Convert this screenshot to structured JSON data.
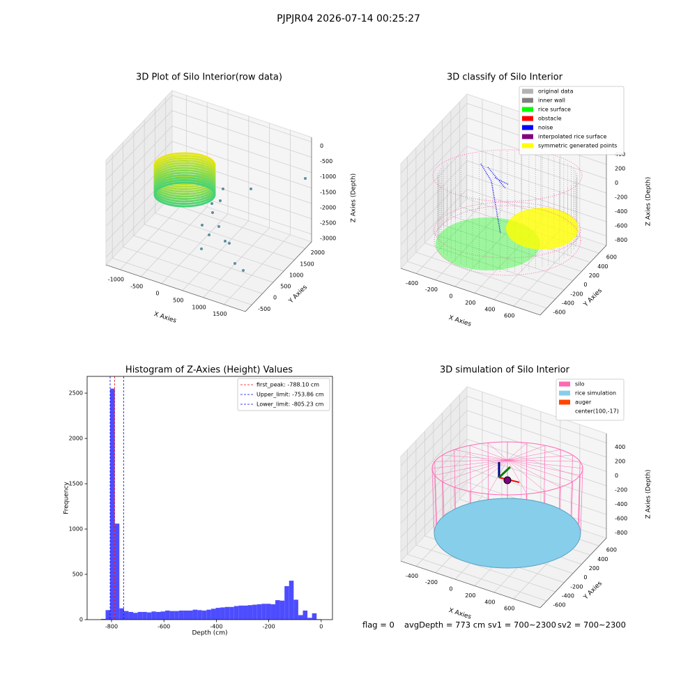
{
  "title": "PJPJR04 2026-07-14 00:25:27",
  "footer": {
    "flag": "flag = 0",
    "avg_depth": "avgDepth = 773 cm",
    "sv1": "sv1 = 700~2300",
    "sv2": "sv2 = 700~2300"
  },
  "chart_data": [
    {
      "type": "scatter3d",
      "title": "3D Plot of Silo Interior(row data)",
      "xlabel": "X Axies",
      "ylabel": "Y Axies",
      "zlabel": "Z Axies (Depth)",
      "xlim": [
        -1342,
        2014
      ],
      "ylim": [
        -800,
        2300
      ],
      "zlim": [
        -3250,
        150
      ],
      "xticks": [
        -1000,
        -500,
        0,
        500,
        1000,
        1500
      ],
      "yticks": [
        -500,
        0,
        500,
        1000,
        1500,
        2000
      ],
      "zticks": [
        0,
        -500,
        -1000,
        -1500,
        -2000,
        -2500,
        -3000
      ]
    },
    {
      "type": "scatter3d",
      "title": "3D classify of Silo Interior",
      "xlabel": "X Axies",
      "ylabel": "Y Axies",
      "zlabel": "Z Axies (Depth)",
      "xlim": [
        -557,
        873
      ],
      "ylim": [
        -750,
        770
      ],
      "zlim": [
        -930,
        530
      ],
      "xticks": [
        -400,
        -200,
        0,
        200,
        400,
        600
      ],
      "yticks": [
        -600,
        -400,
        -200,
        0,
        200,
        400,
        600
      ],
      "zticks": [
        400,
        200,
        0,
        -200,
        -400,
        -600,
        -800
      ],
      "legend": [
        {
          "name": "original data",
          "color": "#b3b3b3"
        },
        {
          "name": "inner wall",
          "color": "#808080"
        },
        {
          "name": "rice surface",
          "color": "#00ff00"
        },
        {
          "name": "obstacle",
          "color": "#ff0000"
        },
        {
          "name": "noise",
          "color": "#0000ff"
        },
        {
          "name": "interpolated rice surface",
          "color": "#800080"
        },
        {
          "name": "symmetric generated points",
          "color": "#ffff00"
        }
      ]
    },
    {
      "type": "histogram",
      "title": "Histogram of Z-Axies (Height) Values",
      "xlabel": "Depth (cm)",
      "ylabel": "Frequency",
      "color": "#4d4dff",
      "xlim": [
        -893,
        43
      ],
      "ylim": [
        0,
        2685
      ],
      "xticks": [
        -800,
        -600,
        -400,
        -200,
        0
      ],
      "yticks": [
        0,
        500,
        1000,
        1500,
        2000,
        2500
      ],
      "bins": [
        -840,
        -822.5,
        -805,
        -787.5,
        -770,
        -752.5,
        -735,
        -717.5,
        -700,
        -682.5,
        -665,
        -647.5,
        -630,
        -612.5,
        -595,
        -577.5,
        -560,
        -542.5,
        -525,
        -507.5,
        -490,
        -472.5,
        -455,
        -437.5,
        -420,
        -402.5,
        -385,
        -367.5,
        -350,
        -332.5,
        -315,
        -297.5,
        -280,
        -262.5,
        -245,
        -227.5,
        -210,
        -192.5,
        -175,
        -157.5,
        -140,
        -122.5,
        -105,
        -87.5,
        -70,
        -52.5,
        -35,
        -17.5,
        0
      ],
      "values": [
        8,
        105,
        2550,
        1060,
        125,
        95,
        85,
        75,
        85,
        85,
        80,
        90,
        85,
        90,
        100,
        95,
        95,
        100,
        100,
        100,
        110,
        105,
        100,
        110,
        120,
        130,
        135,
        140,
        140,
        150,
        155,
        155,
        160,
        165,
        170,
        175,
        175,
        170,
        215,
        210,
        370,
        430,
        220,
        50,
        100,
        20,
        70,
        5
      ],
      "vlines": [
        {
          "name": "first_peak: -788.10 cm",
          "value": -788.1,
          "color": "#ff0000"
        },
        {
          "name": "Upper_limit: -753.86 cm",
          "value": -753.86,
          "color": "#0000ff"
        },
        {
          "name": "Lower_limit: -805.23 cm",
          "value": -805.23,
          "color": "#0000ff"
        }
      ]
    },
    {
      "type": "surface3d",
      "title": "3D simulation of Silo Interior",
      "xlabel": "X Axies",
      "ylabel": "Y Axies",
      "zlabel": "Z Axies (Depth)",
      "xlim": [
        -557,
        873
      ],
      "ylim": [
        -750,
        770
      ],
      "zlim": [
        -930,
        530
      ],
      "xticks": [
        -400,
        -200,
        0,
        200,
        400,
        600
      ],
      "yticks": [
        -600,
        -400,
        -200,
        0,
        200,
        400,
        600
      ],
      "zticks": [
        400,
        200,
        0,
        -200,
        -400,
        -600,
        -800
      ],
      "legend": [
        {
          "name": "silo",
          "color": "#ff69b4"
        },
        {
          "name": "rice simulation",
          "color": "#87ceeb"
        },
        {
          "name": "auger",
          "color": "#ff4500"
        },
        {
          "name": "center(100,-17)"
        }
      ]
    }
  ]
}
